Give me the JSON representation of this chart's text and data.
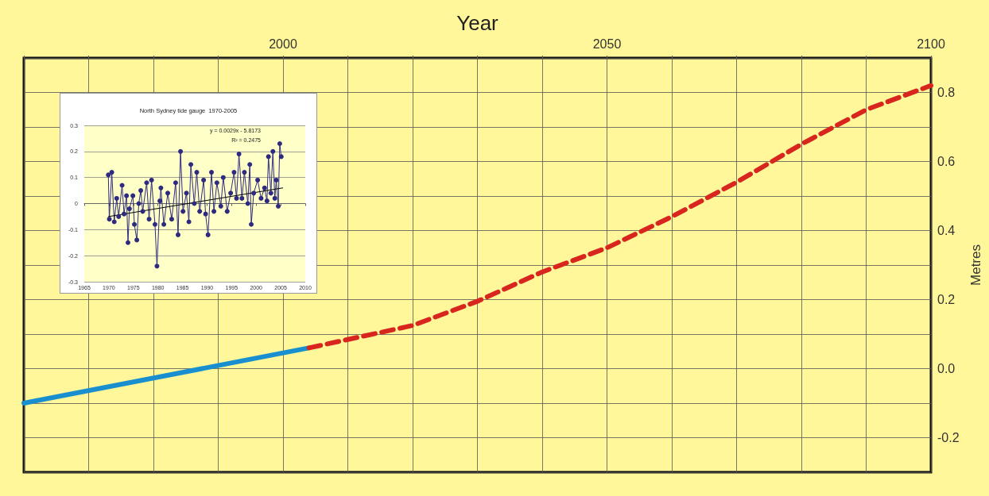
{
  "chart_data": [
    {
      "type": "line",
      "xlabel": "Year",
      "ylabel": "Metres",
      "xlim": [
        1960,
        2100
      ],
      "ylim": [
        -0.3,
        0.9
      ],
      "xticks": [
        {
          "value": 1960,
          "label": null
        },
        {
          "value": 1970,
          "label": null
        },
        {
          "value": 1980,
          "label": null
        },
        {
          "value": 1990,
          "label": null
        },
        2000,
        {
          "value": 2010,
          "label": null
        },
        {
          "value": 2020,
          "label": null
        },
        {
          "value": 2030,
          "label": null
        },
        {
          "value": 2040,
          "label": null
        },
        2050,
        {
          "value": 2060,
          "label": null
        },
        {
          "value": 2070,
          "label": null
        },
        {
          "value": 2080,
          "label": null
        },
        {
          "value": 2090,
          "label": null
        },
        2100
      ],
      "yticks": [
        {
          "value": -0.3,
          "label": null
        },
        -0.2,
        {
          "value": -0.1,
          "label": null
        },
        {
          "value": 0,
          "label": "0.0"
        },
        {
          "value": 0.1,
          "label": null
        },
        0.2,
        {
          "value": 0.3,
          "label": null
        },
        0.4,
        {
          "value": 0.5,
          "label": null
        },
        0.6,
        {
          "value": 0.7,
          "label": null
        },
        0.8,
        {
          "value": 0.9,
          "label": null
        }
      ],
      "grid": true,
      "series": [
        {
          "color": "#1a8fd0",
          "line_style": "solid",
          "x": [
            1960,
            2004
          ],
          "values": [
            -0.1,
            0.06
          ]
        },
        {
          "color": "#d8261e",
          "line_style": "dashed",
          "x": [
            2004,
            2020,
            2030,
            2040,
            2050,
            2060,
            2070,
            2080,
            2090,
            2100
          ],
          "values": [
            0.06,
            0.125,
            0.195,
            0.28,
            0.35,
            0.44,
            0.54,
            0.65,
            0.75,
            0.82
          ]
        }
      ]
    },
    {
      "type": "line",
      "title": "North Sydney tide gauge  1970-2005",
      "xlim": [
        1965,
        2010
      ],
      "ylim": [
        -0.3,
        0.3
      ],
      "xticks": [
        1965,
        1970,
        1975,
        1980,
        1985,
        1990,
        1995,
        2000,
        2005,
        2010
      ],
      "yticks": [
        -0.3,
        -0.2,
        -0.1,
        0,
        0.1,
        0.2,
        0.3
      ],
      "grid": "y",
      "annotations": [
        "y = 0.0029x - 5.8173",
        "R² = 0.2475"
      ],
      "series": [
        {
          "color": "#2e2a80",
          "marker": "circle",
          "line_style": "solid",
          "x": [
            1969.9,
            1970.1,
            1970.6,
            1971.1,
            1971.6,
            1972.0,
            1972.7,
            1973.1,
            1973.6,
            1973.9,
            1974.2,
            1974.9,
            1975.2,
            1975.7,
            1976.1,
            1976.5,
            1976.9,
            1977.7,
            1978.2,
            1978.7,
            1979.4,
            1979.8,
            1980.4,
            1980.6,
            1981.2,
            1982.0,
            1982.8,
            1983.6,
            1984.1,
            1984.6,
            1985.1,
            1985.8,
            1986.3,
            1986.7,
            1987.4,
            1987.9,
            1988.5,
            1989.3,
            1989.7,
            1990.2,
            1990.9,
            1991.4,
            1992.0,
            1992.8,
            1993.3,
            1994.1,
            1994.8,
            1995.5,
            1996.0,
            1996.5,
            1997.1,
            1997.6,
            1998.3,
            1998.7,
            1999.0,
            1999.5,
            2000.3,
            2001.0,
            2001.7,
            2002.2,
            2002.5,
            2003.0,
            2003.4,
            2003.8,
            2004.1,
            2004.5,
            2004.8,
            2005.1
          ],
          "values": [
            0.11,
            -0.06,
            0.12,
            -0.07,
            0.02,
            -0.05,
            0.07,
            -0.04,
            0.03,
            -0.15,
            -0.02,
            0.03,
            -0.08,
            -0.14,
            0.0,
            0.05,
            -0.03,
            0.08,
            -0.06,
            0.09,
            -0.08,
            -0.24,
            0.01,
            0.06,
            -0.08,
            0.04,
            -0.06,
            0.08,
            -0.12,
            0.2,
            -0.03,
            0.04,
            -0.07,
            0.15,
            0.0,
            0.12,
            -0.03,
            0.09,
            -0.04,
            -0.12,
            0.12,
            -0.03,
            0.08,
            -0.01,
            0.1,
            -0.03,
            0.04,
            0.12,
            0.02,
            0.19,
            0.02,
            0.12,
            0.0,
            0.15,
            -0.08,
            0.04,
            0.09,
            0.02,
            0.06,
            0.01,
            0.18,
            0.04,
            0.2,
            0.02,
            0.09,
            -0.01,
            0.23,
            0.18
          ]
        },
        {
          "color": "#000000",
          "marker": "none",
          "line_style": "solid",
          "x": [
            1969.9,
            2005.4
          ],
          "values": [
            -0.05,
            0.06
          ]
        }
      ]
    }
  ]
}
